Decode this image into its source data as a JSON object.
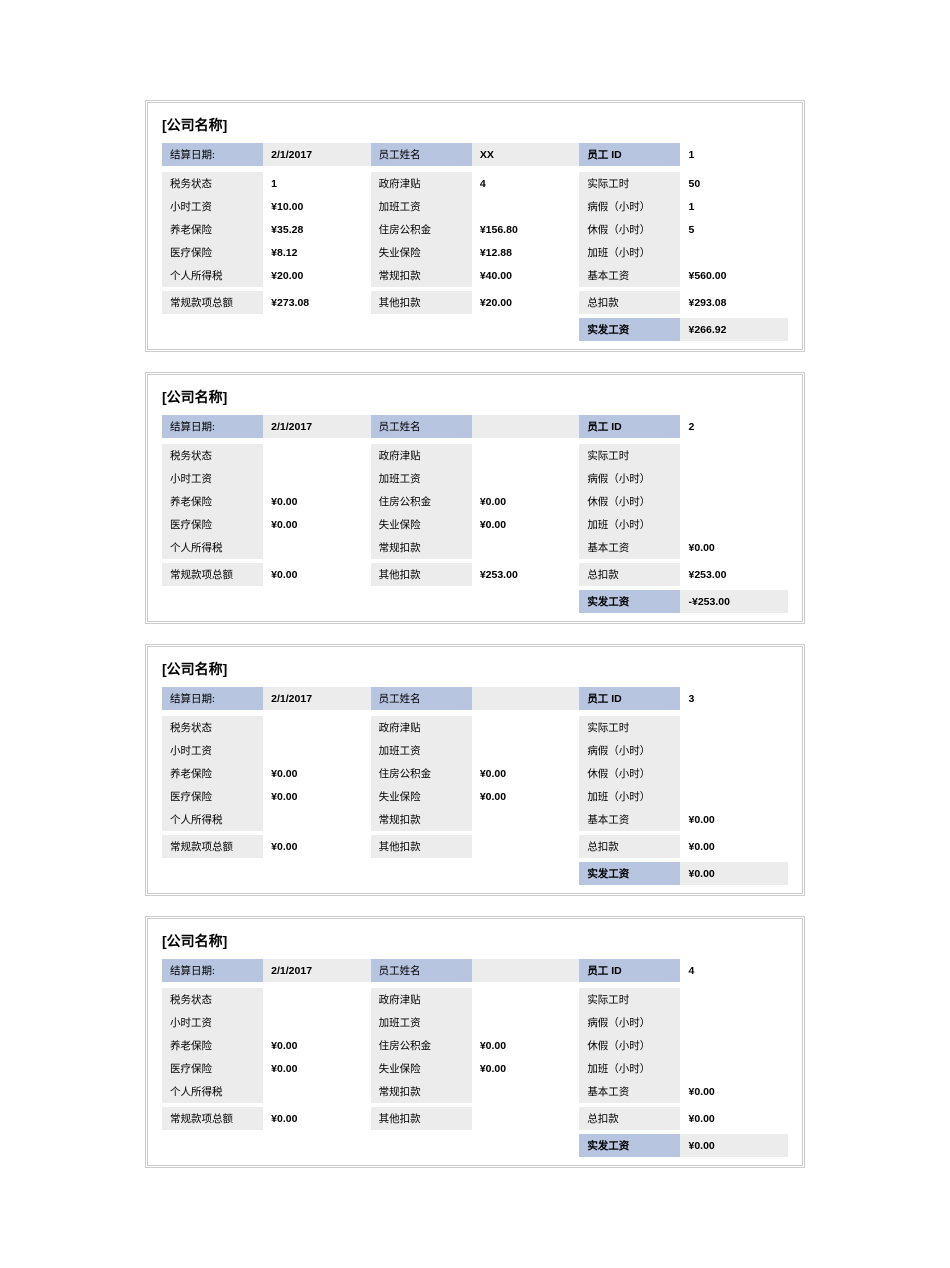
{
  "company_title": "[公司名称]",
  "labels": {
    "pay_date": "结算日期:",
    "emp_name": "员工姓名",
    "emp_id": "员工 ID",
    "tax_status": "税务状态",
    "gov_allowance": "政府津贴",
    "actual_hours": "实际工时",
    "hourly_rate": "小时工资",
    "overtime_pay": "加班工资",
    "sick_hours": "病假（小时）",
    "pension": "养老保险",
    "housing_fund": "住房公积金",
    "leave_hours": "休假（小时）",
    "medical": "医疗保险",
    "unemployment": "失业保险",
    "overtime_hours": "加班（小时）",
    "income_tax": "个人所得税",
    "regular_deduct": "常规扣款",
    "base_pay": "基本工资",
    "regular_total": "常规款项总额",
    "other_deduct": "其他扣款",
    "total_deduct": "总扣款",
    "net_pay": "实发工资"
  },
  "stubs": [
    {
      "date": "2/1/2017",
      "name": "XX",
      "id": "1",
      "tax_status": "1",
      "gov_allowance": "4",
      "actual_hours": "50",
      "hourly_rate": "¥10.00",
      "overtime_pay": "",
      "sick_hours": "1",
      "pension": "¥35.28",
      "housing_fund": "¥156.80",
      "leave_hours": "5",
      "medical": "¥8.12",
      "unemployment": "¥12.88",
      "overtime_hours": "",
      "income_tax": "¥20.00",
      "regular_deduct": "¥40.00",
      "base_pay": "¥560.00",
      "regular_total": "¥273.08",
      "other_deduct": "¥20.00",
      "total_deduct": "¥293.08",
      "net_pay": "¥266.92"
    },
    {
      "date": "2/1/2017",
      "name": "",
      "id": "2",
      "tax_status": "",
      "gov_allowance": "",
      "actual_hours": "",
      "hourly_rate": "",
      "overtime_pay": "",
      "sick_hours": "",
      "pension": "¥0.00",
      "housing_fund": "¥0.00",
      "leave_hours": "",
      "medical": "¥0.00",
      "unemployment": "¥0.00",
      "overtime_hours": "",
      "income_tax": "",
      "regular_deduct": "",
      "base_pay": "¥0.00",
      "regular_total": "¥0.00",
      "other_deduct": "¥253.00",
      "total_deduct": "¥253.00",
      "net_pay": "-¥253.00"
    },
    {
      "date": "2/1/2017",
      "name": "",
      "id": "3",
      "tax_status": "",
      "gov_allowance": "",
      "actual_hours": "",
      "hourly_rate": "",
      "overtime_pay": "",
      "sick_hours": "",
      "pension": "¥0.00",
      "housing_fund": "¥0.00",
      "leave_hours": "",
      "medical": "¥0.00",
      "unemployment": "¥0.00",
      "overtime_hours": "",
      "income_tax": "",
      "regular_deduct": "",
      "base_pay": "¥0.00",
      "regular_total": "¥0.00",
      "other_deduct": "",
      "total_deduct": "¥0.00",
      "net_pay": "¥0.00"
    },
    {
      "date": "2/1/2017",
      "name": "",
      "id": "4",
      "tax_status": "",
      "gov_allowance": "",
      "actual_hours": "",
      "hourly_rate": "",
      "overtime_pay": "",
      "sick_hours": "",
      "pension": "¥0.00",
      "housing_fund": "¥0.00",
      "leave_hours": "",
      "medical": "¥0.00",
      "unemployment": "¥0.00",
      "overtime_hours": "",
      "income_tax": "",
      "regular_deduct": "",
      "base_pay": "¥0.00",
      "regular_total": "¥0.00",
      "other_deduct": "",
      "total_deduct": "¥0.00",
      "net_pay": "¥0.00"
    }
  ]
}
